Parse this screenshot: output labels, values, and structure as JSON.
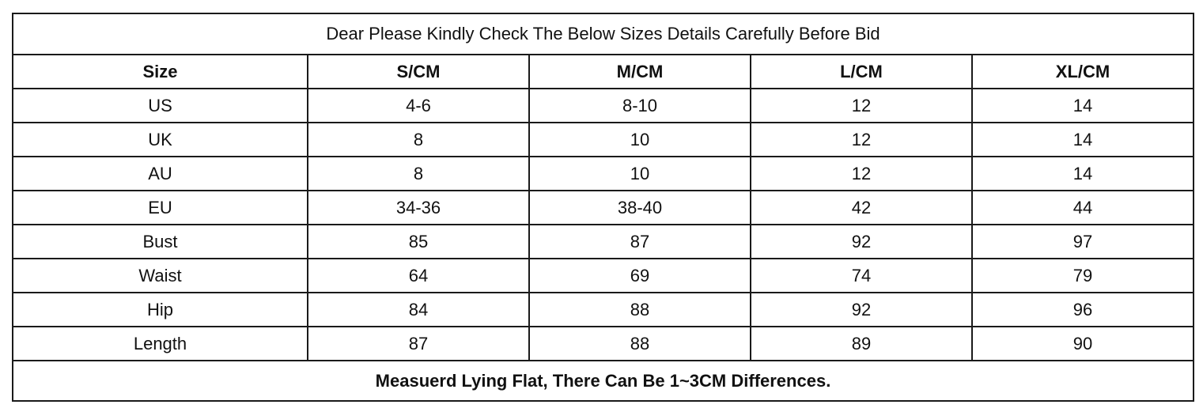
{
  "table": {
    "title": "Dear Please Kindly Check The Below Sizes Details Carefully Before Bid",
    "headers": [
      "Size",
      "S/CM",
      "M/CM",
      "L/CM",
      "XL/CM"
    ],
    "rows": [
      [
        "US",
        "4-6",
        "8-10",
        "12",
        "14"
      ],
      [
        "UK",
        "8",
        "10",
        "12",
        "14"
      ],
      [
        "AU",
        "8",
        "10",
        "12",
        "14"
      ],
      [
        "EU",
        "34-36",
        "38-40",
        "42",
        "44"
      ],
      [
        "Bust",
        "85",
        "87",
        "92",
        "97"
      ],
      [
        "Waist",
        "64",
        "69",
        "74",
        "79"
      ],
      [
        "Hip",
        "84",
        "88",
        "92",
        "96"
      ],
      [
        "Length",
        "87",
        "88",
        "89",
        "90"
      ]
    ],
    "footer": "Measuerd Lying Flat, There Can Be 1~3CM Differences."
  }
}
